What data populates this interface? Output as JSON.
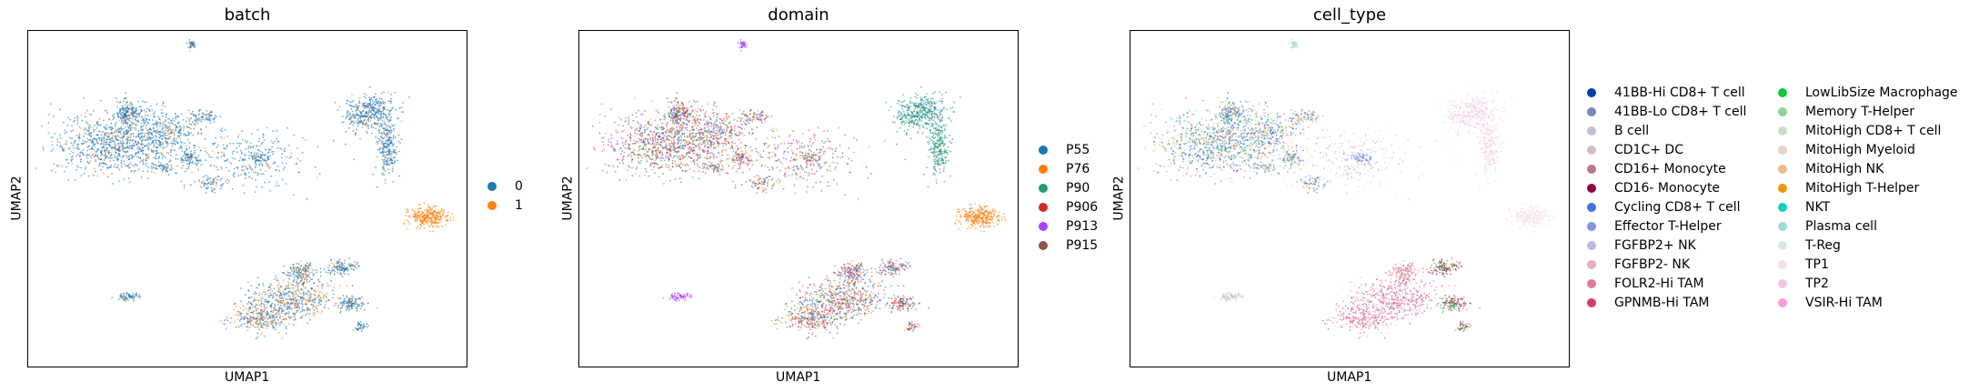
{
  "chart_data": [
    {
      "type": "scatter",
      "title": "batch",
      "xlabel": "UMAP1",
      "ylabel": "UMAP2",
      "grid": false,
      "legend_placement": "right",
      "legend": [
        {
          "label": "0",
          "color": "#1f77b4"
        },
        {
          "label": "1",
          "color": "#ff7f0e"
        }
      ]
    },
    {
      "type": "scatter",
      "title": "domain",
      "xlabel": "UMAP1",
      "ylabel": "UMAP2",
      "grid": false,
      "legend_placement": "right",
      "legend": [
        {
          "label": "P55",
          "color": "#1f77b4"
        },
        {
          "label": "P76",
          "color": "#ff7f0e"
        },
        {
          "label": "P90",
          "color": "#279e68"
        },
        {
          "label": "P906",
          "color": "#d62728"
        },
        {
          "label": "P913",
          "color": "#aa40fc"
        },
        {
          "label": "P915",
          "color": "#8c564b"
        }
      ]
    },
    {
      "type": "scatter",
      "title": "cell_type",
      "xlabel": "UMAP1",
      "ylabel": "UMAP2",
      "grid": false,
      "legend_placement": "right",
      "legend": [
        {
          "label": "41BB-Hi CD8+ T cell",
          "color": "#023fa5"
        },
        {
          "label": "41BB-Lo CD8+ T cell",
          "color": "#7d87b9"
        },
        {
          "label": "B cell",
          "color": "#bec1d4"
        },
        {
          "label": "CD1C+ DC",
          "color": "#d6bcc0"
        },
        {
          "label": "CD16+ Monocyte",
          "color": "#bb7784"
        },
        {
          "label": "CD16- Monocyte",
          "color": "#8e063b"
        },
        {
          "label": "Cycling CD8+ T cell",
          "color": "#4a6fe3"
        },
        {
          "label": "Effector T-Helper",
          "color": "#8595e1"
        },
        {
          "label": "FGFBP2+ NK",
          "color": "#b5bbe3"
        },
        {
          "label": "FGFBP2- NK",
          "color": "#e6afb9"
        },
        {
          "label": "FOLR2-Hi TAM",
          "color": "#e07b91"
        },
        {
          "label": "GPNMB-Hi TAM",
          "color": "#d33f6a"
        },
        {
          "label": "LowLibSize Macrophage",
          "color": "#11c638"
        },
        {
          "label": "Memory T-Helper",
          "color": "#8dd593"
        },
        {
          "label": "MitoHigh CD8+ T cell",
          "color": "#c6dec7"
        },
        {
          "label": "MitoHigh Myeloid",
          "color": "#ead3c6"
        },
        {
          "label": "MitoHigh NK",
          "color": "#f0b98d"
        },
        {
          "label": "MitoHigh T-Helper",
          "color": "#ef9708"
        },
        {
          "label": "NKT",
          "color": "#0fcfc0"
        },
        {
          "label": "Plasma cell",
          "color": "#9cded6"
        },
        {
          "label": "T-Reg",
          "color": "#d5eae7"
        },
        {
          "label": "TP1",
          "color": "#f3e1eb"
        },
        {
          "label": "TP2",
          "color": "#f6c4e1"
        },
        {
          "label": "VSIR-Hi TAM",
          "color": "#f79cd4"
        }
      ]
    }
  ]
}
